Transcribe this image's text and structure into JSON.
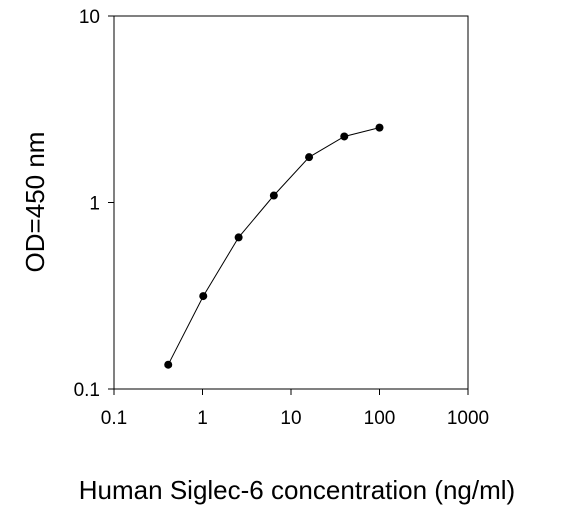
{
  "chart_data": {
    "type": "line",
    "title": "",
    "xlabel": "Human Siglec-6 concentration (ng/ml)",
    "ylabel": "OD=450 nm",
    "xscale": "log",
    "yscale": "log",
    "xlim": [
      0.1,
      1000
    ],
    "ylim": [
      0.1,
      10
    ],
    "xticks": [
      {
        "value": 0.1,
        "label": "0.1"
      },
      {
        "value": 1,
        "label": "1"
      },
      {
        "value": 10,
        "label": "10"
      },
      {
        "value": 100,
        "label": "100"
      },
      {
        "value": 1000,
        "label": "1000"
      }
    ],
    "yticks": [
      {
        "value": 0.1,
        "label": "0.1"
      },
      {
        "value": 1,
        "label": "1"
      },
      {
        "value": 10,
        "label": "10"
      }
    ],
    "grid": false,
    "legend": "none",
    "series": [
      {
        "color": "#000000",
        "marker": "circle",
        "x": [
          0.41,
          1.02,
          2.56,
          6.4,
          16,
          40,
          100
        ],
        "y": [
          0.135,
          0.315,
          0.65,
          1.09,
          1.75,
          2.26,
          2.52
        ]
      }
    ]
  }
}
